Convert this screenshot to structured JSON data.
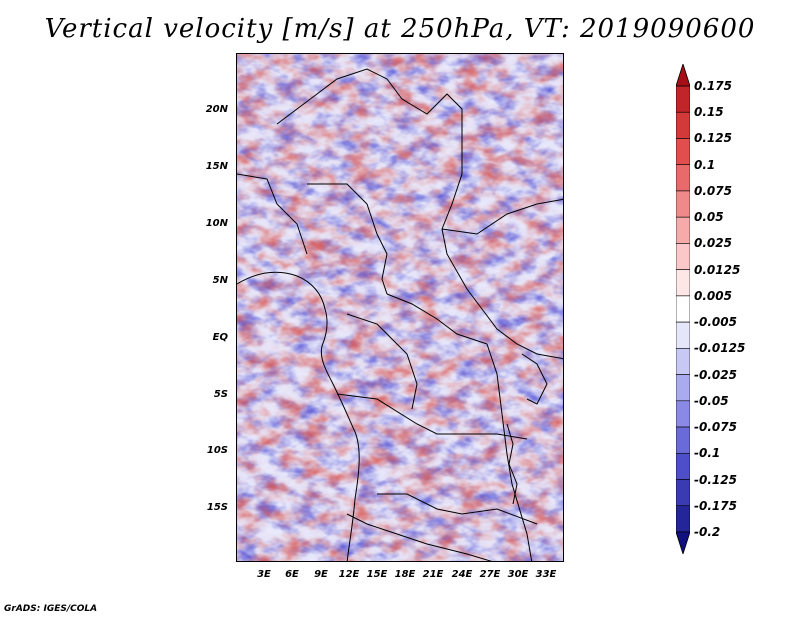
{
  "title": "Vertical velocity [m/s] at 250hPa, VT: 2019090600",
  "credit": "GrADS: IGES/COLA",
  "lat_labels": [
    "20N",
    "15N",
    "10N",
    "5N",
    "EQ",
    "5S",
    "10S",
    "15S"
  ],
  "lon_labels": [
    "3E",
    "6E",
    "9E",
    "12E",
    "15E",
    "18E",
    "21E",
    "24E",
    "27E",
    "30E",
    "33E"
  ],
  "colorbar": {
    "labels": [
      "0.175",
      "0.15",
      "0.125",
      "0.1",
      "0.075",
      "0.05",
      "0.025",
      "0.0125",
      "0.005",
      "-0.005",
      "-0.0125",
      "-0.025",
      "-0.05",
      "-0.075",
      "-0.1",
      "-0.125",
      "-0.175",
      "-0.2"
    ],
    "colors": [
      "#a50f15",
      "#c0252a",
      "#d23a3a",
      "#e04e4e",
      "#e86a6a",
      "#f08a8a",
      "#f6aaaa",
      "#fac8c8",
      "#fde6e6",
      "#ffffff",
      "#e6e6fb",
      "#c8c8f5",
      "#aaaaef",
      "#8a8ae6",
      "#6a6ad8",
      "#4e4ec8",
      "#3a3ab2",
      "#25259a",
      "#101080"
    ]
  }
}
